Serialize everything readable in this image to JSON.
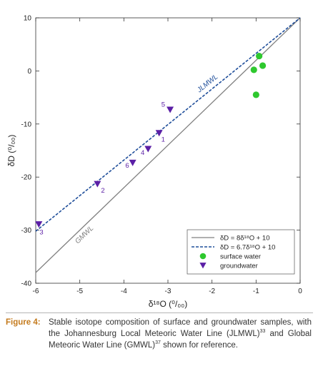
{
  "chart_data": {
    "type": "scatter",
    "xlabel": "δ¹⁸O (⁰/₀₀)",
    "ylabel": "δD (⁰/₀₀)",
    "xlim": [
      -6,
      0
    ],
    "ylim": [
      -40,
      10
    ],
    "xticks": [
      -6,
      -5,
      -4,
      -3,
      -2,
      -1,
      0
    ],
    "yticks": [
      -40,
      -30,
      -20,
      -10,
      0,
      10
    ],
    "grid": false,
    "legend_position": "bottom-right",
    "lines": [
      {
        "name": "δD = 8δ¹⁸O + 10",
        "label": "GMWL",
        "slope": 8,
        "intercept": 10,
        "color": "#808080",
        "dash": false,
        "x_range": [
          -6,
          0
        ]
      },
      {
        "name": "δD = 6.7δ¹⁸O + 10",
        "label": "JLMWL",
        "slope": 6.7,
        "intercept": 10,
        "color": "#1f4e9a",
        "dash": true,
        "x_range": [
          -6,
          0
        ]
      }
    ],
    "series": [
      {
        "name": "surface water",
        "marker": "circle",
        "color": "#2ec82e",
        "points": [
          {
            "x": -0.93,
            "y": 2.8
          },
          {
            "x": -0.85,
            "y": 1.0
          },
          {
            "x": -1.05,
            "y": 0.2
          },
          {
            "x": -1.0,
            "y": -4.5
          }
        ]
      },
      {
        "name": "groundwater",
        "marker": "triangle-down",
        "color": "#5b1fa6",
        "points": [
          {
            "x": -5.93,
            "y": -28.9,
            "label": "3"
          },
          {
            "x": -4.6,
            "y": -21.3,
            "label": "2"
          },
          {
            "x": -3.8,
            "y": -17.3,
            "label": "6"
          },
          {
            "x": -3.45,
            "y": -14.7,
            "label": "4"
          },
          {
            "x": -3.2,
            "y": -11.7,
            "label": "1"
          },
          {
            "x": -2.95,
            "y": -7.3,
            "label": "5"
          }
        ]
      }
    ]
  },
  "caption": {
    "label": "Figure 4:",
    "text_html": "Stable isotope composition of surface and groundwater samples, with the Johannesburg Local Meteoric Water Line (JLMWL)<sup>33</sup> and Global Meteoric Water Line (GMWL)<sup>37</sup> shown for reference."
  }
}
